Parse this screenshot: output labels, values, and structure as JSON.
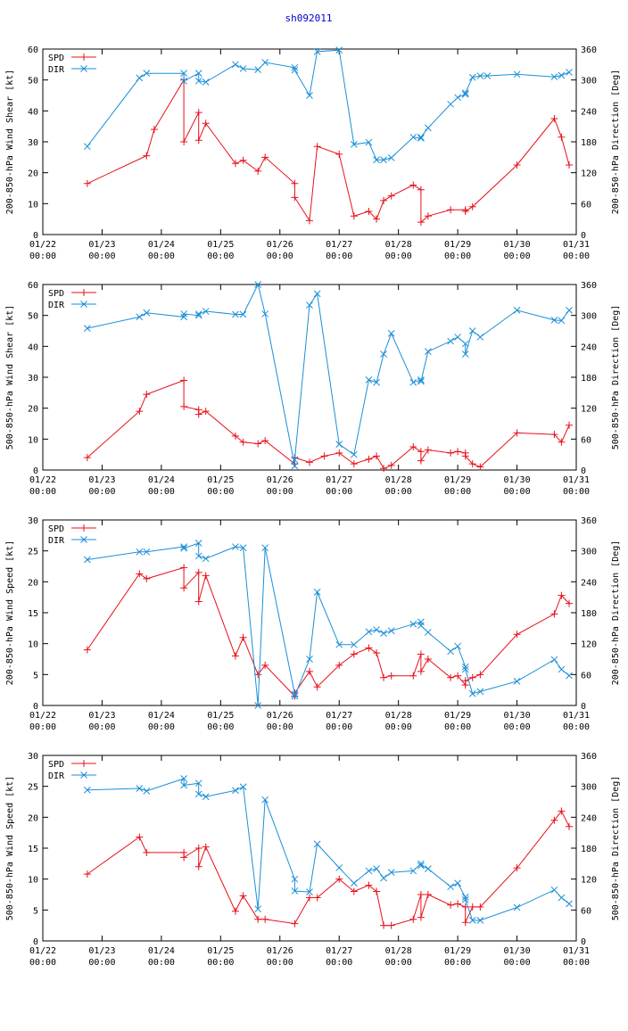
{
  "title": "sh092011",
  "colors": {
    "spd": "#e8101a",
    "dir": "#1a8fd8",
    "title": "#0000cc",
    "axis": "#000000"
  },
  "x_ticks": [
    [
      "01/22",
      "00:00"
    ],
    [
      "01/23",
      "00:00"
    ],
    [
      "01/24",
      "00:00"
    ],
    [
      "01/25",
      "00:00"
    ],
    [
      "01/26",
      "00:00"
    ],
    [
      "01/27",
      "00:00"
    ],
    [
      "01/28",
      "00:00"
    ],
    [
      "01/29",
      "00:00"
    ],
    [
      "01/30",
      "00:00"
    ],
    [
      "01/31",
      "00:00"
    ]
  ],
  "chart_data": [
    {
      "type": "line",
      "ylabel": "200-850-hPa Wind Shear [kt]",
      "y2label": "200-850-hPa Direction [Deg]",
      "xlim": [
        0,
        9
      ],
      "ylim": [
        0,
        60
      ],
      "yticks": [
        0,
        10,
        20,
        30,
        40,
        50,
        60
      ],
      "y2lim": [
        0,
        360
      ],
      "y2ticks": [
        0,
        60,
        120,
        180,
        240,
        300,
        360
      ],
      "legend": "top-left",
      "series": [
        {
          "name": "SPD",
          "axis": "left",
          "marker": "plus",
          "x": [
            0.75,
            1.75,
            1.88,
            2.38,
            2.38,
            2.63,
            2.63,
            2.75,
            3.25,
            3.38,
            3.63,
            3.75,
            4.25,
            4.25,
            4.5,
            4.63,
            5.0,
            5.25,
            5.5,
            5.63,
            5.75,
            5.88,
            6.25,
            6.38,
            6.38,
            6.5,
            6.88,
            7.13,
            7.13,
            7.25,
            8.0,
            8.63,
            8.75,
            8.88
          ],
          "y": [
            16.5,
            25.5,
            34,
            50,
            30,
            39.5,
            30.5,
            36,
            23,
            24,
            20.5,
            25,
            16.5,
            12,
            4.5,
            28.5,
            26,
            6,
            7.5,
            5,
            11,
            12.5,
            16,
            14.5,
            4,
            6,
            8,
            8,
            7.5,
            9,
            22.5,
            37.5,
            31.5,
            22.5
          ]
        },
        {
          "name": "DIR",
          "axis": "right",
          "marker": "x",
          "x": [
            0.75,
            1.63,
            1.75,
            2.38,
            2.38,
            2.63,
            2.63,
            2.75,
            3.25,
            3.38,
            3.63,
            3.75,
            4.25,
            4.25,
            4.5,
            4.63,
            5.0,
            5.25,
            5.5,
            5.63,
            5.75,
            5.88,
            6.25,
            6.38,
            6.38,
            6.5,
            6.88,
            7.0,
            7.13,
            7.13,
            7.25,
            7.38,
            7.5,
            8.0,
            8.63,
            8.75,
            8.88
          ],
          "y": [
            171,
            304,
            313,
            313,
            298,
            313,
            298,
            296,
            330,
            322,
            320,
            334,
            324,
            319,
            270,
            355,
            358,
            175,
            179,
            145,
            145,
            149,
            189,
            187,
            189,
            207,
            253,
            266,
            272,
            275,
            305,
            308,
            308,
            311,
            306,
            309,
            315
          ]
        }
      ]
    },
    {
      "type": "line",
      "ylabel": "500-850-hPa Wind Shear [kt]",
      "y2label": "500-850-hPa Direction [Deg]",
      "xlim": [
        0,
        9
      ],
      "ylim": [
        0,
        60
      ],
      "yticks": [
        0,
        10,
        20,
        30,
        40,
        50,
        60
      ],
      "y2lim": [
        0,
        360
      ],
      "y2ticks": [
        0,
        60,
        120,
        180,
        240,
        300,
        360
      ],
      "legend": "top-left",
      "series": [
        {
          "name": "SPD",
          "axis": "left",
          "marker": "plus",
          "x": [
            0.75,
            1.63,
            1.75,
            2.38,
            2.38,
            2.63,
            2.63,
            2.75,
            3.25,
            3.38,
            3.63,
            3.75,
            4.25,
            4.25,
            4.5,
            4.75,
            5.0,
            5.25,
            5.5,
            5.63,
            5.75,
            5.88,
            6.25,
            6.38,
            6.38,
            6.5,
            6.88,
            7.0,
            7.13,
            7.13,
            7.25,
            7.38,
            8.0,
            8.63,
            8.75,
            8.88
          ],
          "y": [
            4,
            19,
            24.5,
            29,
            20.5,
            19.5,
            18,
            19,
            11,
            9,
            8.5,
            9.5,
            2,
            4,
            2.5,
            4.5,
            5.5,
            2,
            3.5,
            4.5,
            0.5,
            1.5,
            7.5,
            6,
            3,
            6.5,
            5.5,
            6,
            5.5,
            4.5,
            2,
            1,
            12,
            11.5,
            9,
            14.5
          ]
        },
        {
          "name": "DIR",
          "axis": "right",
          "marker": "x",
          "x": [
            0.75,
            1.63,
            1.75,
            2.38,
            2.38,
            2.63,
            2.63,
            2.75,
            3.25,
            3.38,
            3.63,
            3.75,
            4.25,
            4.25,
            4.5,
            4.63,
            5.0,
            5.25,
            5.5,
            5.63,
            5.75,
            5.88,
            6.25,
            6.38,
            6.38,
            6.5,
            6.88,
            7.0,
            7.13,
            7.13,
            7.25,
            7.38,
            8.0,
            8.63,
            8.75,
            8.88
          ],
          "y": [
            275,
            297,
            305,
            297,
            303,
            300,
            303,
            308,
            302,
            302,
            360,
            303,
            8,
            20,
            320,
            342,
            50,
            30,
            175,
            170,
            225,
            265,
            170,
            175,
            172,
            230,
            250,
            258,
            245,
            225,
            270,
            258,
            310,
            291,
            290,
            310
          ]
        }
      ]
    },
    {
      "type": "line",
      "ylabel": "200-850-hPa Wind Speed [kt]",
      "y2label": "200-850-hPa Direction [Deg]",
      "xlim": [
        0,
        9
      ],
      "ylim": [
        0,
        30
      ],
      "yticks": [
        0,
        5,
        10,
        15,
        20,
        25,
        30
      ],
      "y2lim": [
        0,
        360
      ],
      "y2ticks": [
        0,
        60,
        120,
        180,
        240,
        300,
        360
      ],
      "legend": "top-left",
      "series": [
        {
          "name": "SPD",
          "axis": "left",
          "marker": "plus",
          "x": [
            0.75,
            1.63,
            1.75,
            2.38,
            2.38,
            2.63,
            2.63,
            2.75,
            3.25,
            3.38,
            3.63,
            3.75,
            4.25,
            4.25,
            4.5,
            4.63,
            5.0,
            5.25,
            5.5,
            5.63,
            5.75,
            5.88,
            6.25,
            6.38,
            6.38,
            6.5,
            6.88,
            7.0,
            7.13,
            7.13,
            7.25,
            7.38,
            8.0,
            8.63,
            8.75,
            8.88
          ],
          "y": [
            9,
            21.3,
            20.5,
            22.3,
            19,
            21.5,
            16.8,
            21,
            8,
            11,
            5,
            6.5,
            1.5,
            2,
            5.5,
            3,
            6.5,
            8.3,
            9.3,
            8.5,
            4.5,
            4.8,
            4.8,
            8.3,
            5.5,
            7.5,
            4.5,
            4.8,
            3.3,
            4,
            4.5,
            5,
            11.5,
            14.8,
            17.8,
            16.5
          ]
        },
        {
          "name": "DIR",
          "axis": "right",
          "marker": "x",
          "x": [
            0.75,
            1.63,
            1.75,
            2.38,
            2.38,
            2.63,
            2.63,
            2.75,
            3.25,
            3.38,
            3.63,
            3.75,
            4.25,
            4.25,
            4.5,
            4.63,
            5.0,
            5.25,
            5.5,
            5.63,
            5.75,
            5.88,
            6.25,
            6.38,
            6.38,
            6.5,
            6.88,
            7.0,
            7.13,
            7.13,
            7.25,
            7.38,
            8.0,
            8.63,
            8.75,
            8.88
          ],
          "y": [
            283,
            298,
            298,
            308,
            305,
            315,
            290,
            285,
            308,
            306,
            0,
            306,
            22,
            18,
            90,
            220,
            118,
            118,
            143,
            147,
            140,
            145,
            158,
            162,
            155,
            142,
            105,
            115,
            75,
            70,
            23,
            27,
            47,
            89,
            70,
            58
          ]
        }
      ]
    },
    {
      "type": "line",
      "ylabel": "500-850-hPa Wind Speed [kt]",
      "y2label": "500-850-hPa Direction [Deg]",
      "xlim": [
        0,
        9
      ],
      "ylim": [
        0,
        30
      ],
      "yticks": [
        0,
        5,
        10,
        15,
        20,
        25,
        30
      ],
      "y2lim": [
        0,
        360
      ],
      "y2ticks": [
        0,
        60,
        120,
        180,
        240,
        300,
        360
      ],
      "legend": "top-left",
      "series": [
        {
          "name": "SPD",
          "axis": "left",
          "marker": "plus",
          "x": [
            0.75,
            1.63,
            1.75,
            2.38,
            2.38,
            2.63,
            2.63,
            2.75,
            3.25,
            3.38,
            3.63,
            3.75,
            4.25,
            4.5,
            4.63,
            5.0,
            5.25,
            5.5,
            5.63,
            5.75,
            5.88,
            6.25,
            6.38,
            6.38,
            6.5,
            6.88,
            7.0,
            7.13,
            7.13,
            7.25,
            7.38,
            8.0,
            8.63,
            8.75,
            8.88
          ],
          "y": [
            10.8,
            16.8,
            14.3,
            14.3,
            13.5,
            15,
            12,
            15.2,
            4.8,
            7.3,
            3.5,
            3.5,
            2.8,
            7,
            7,
            10,
            8,
            9,
            8,
            2.5,
            2.5,
            3.5,
            7.5,
            3.8,
            7.5,
            5.8,
            6,
            5.5,
            3,
            5.5,
            5.5,
            11.8,
            19.5,
            21,
            18.5
          ]
        },
        {
          "name": "DIR",
          "axis": "right",
          "marker": "x",
          "x": [
            0.75,
            1.63,
            1.75,
            2.38,
            2.38,
            2.63,
            2.63,
            2.75,
            3.25,
            3.38,
            3.63,
            3.75,
            4.25,
            4.25,
            4.5,
            4.63,
            5.0,
            5.25,
            5.5,
            5.63,
            5.75,
            5.88,
            6.25,
            6.38,
            6.38,
            6.5,
            6.88,
            7.0,
            7.13,
            7.13,
            7.25,
            7.38,
            8.0,
            8.63,
            8.75,
            8.88
          ],
          "y": [
            293,
            296,
            291,
            315,
            302,
            306,
            285,
            280,
            292,
            299,
            62,
            274,
            120,
            97,
            95,
            188,
            142,
            112,
            136,
            140,
            122,
            133,
            136,
            150,
            146,
            140,
            105,
            112,
            85,
            80,
            40,
            40,
            65,
            99,
            84,
            72
          ]
        }
      ]
    }
  ]
}
